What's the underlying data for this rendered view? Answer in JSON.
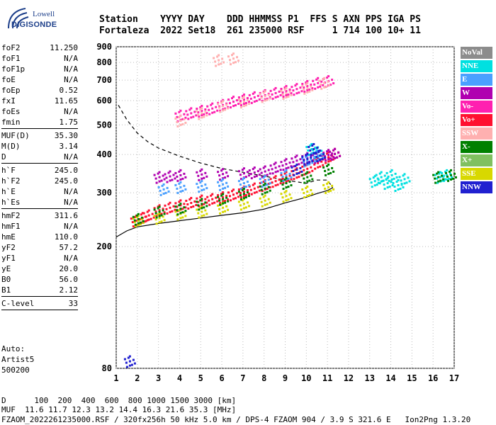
{
  "logo": {
    "brand": "Lowell",
    "sub": "DIGISONDE"
  },
  "header": {
    "line1": "Station    YYYY DAY    DDD HHMMSS P1  FFS S AXN PPS IGA PS",
    "line2": "Fortaleza  2022 Set18  261 235000 RSF     1 714 100 10+ 11"
  },
  "params_a": [
    {
      "name": "foF2",
      "value": "11.250"
    },
    {
      "name": "foF1",
      "value": "N/A"
    },
    {
      "name": "foF1p",
      "value": "N/A"
    },
    {
      "name": "foE",
      "value": "N/A"
    },
    {
      "name": "foEp",
      "value": "0.52"
    },
    {
      "name": "fxI",
      "value": "11.65"
    },
    {
      "name": "foEs",
      "value": "N/A"
    },
    {
      "name": "fmin",
      "value": "1.75"
    }
  ],
  "params_b": [
    {
      "name": "MUF(D)",
      "value": "35.30"
    },
    {
      "name": "M(D)",
      "value": "3.14"
    },
    {
      "name": "D",
      "value": "N/A"
    }
  ],
  "params_c": [
    {
      "name": "h`F",
      "value": "245.0"
    },
    {
      "name": "h`F2",
      "value": "245.0"
    },
    {
      "name": "h`E",
      "value": "N/A"
    },
    {
      "name": "h`Es",
      "value": "N/A"
    }
  ],
  "params_d": [
    {
      "name": "hmF2",
      "value": "311.6"
    },
    {
      "name": "hmF1",
      "value": "N/A"
    },
    {
      "name": "hmE",
      "value": "110.0"
    },
    {
      "name": "yF2",
      "value": "57.2"
    },
    {
      "name": "yF1",
      "value": "N/A"
    },
    {
      "name": "yE",
      "value": "20.0"
    },
    {
      "name": "B0",
      "value": "56.0"
    },
    {
      "name": "B1",
      "value": "2.12"
    }
  ],
  "params_e": [
    {
      "name": "C-level",
      "value": "33"
    }
  ],
  "auto": {
    "l1": "Auto:",
    "l2": "Artist5",
    "l3": "500200"
  },
  "legend": [
    {
      "label": "NoVal",
      "color": "#8c8c8c"
    },
    {
      "label": "NNE",
      "color": "#00e0e0"
    },
    {
      "label": "E",
      "color": "#4aa0ff"
    },
    {
      "label": "W",
      "color": "#b000b0"
    },
    {
      "label": "Vo-",
      "color": "#ff20b0"
    },
    {
      "label": "Vo+",
      "color": "#ff1030"
    },
    {
      "label": "SSW",
      "color": "#ffb0b0"
    },
    {
      "label": "X-",
      "color": "#008000"
    },
    {
      "label": "X+",
      "color": "#80c060"
    },
    {
      "label": "SSE",
      "color": "#d8d800"
    },
    {
      "label": "NNW",
      "color": "#2020d0"
    }
  ],
  "footer": {
    "d_line": "D      100  200  400  600  800 1000 1500 3000 [km]",
    "muf_line": "MUF  11.6 11.7 12.3 13.2 14.4 16.3 21.6 35.3 [MHz]",
    "file_line": "FZAOM_2022261235000.RSF / 320fx256h 50 kHz 5.0 km / DPS-4 FZAOM 904 / 3.9 S 321.6 E   Ion2Png 1.3.20"
  },
  "chart_data": {
    "type": "scatter",
    "x_ticks": [
      "1",
      "2",
      "3",
      "4",
      "5",
      "6",
      "7",
      "8",
      "9",
      "10",
      "11",
      "12",
      "13",
      "14",
      "15",
      "16",
      "17"
    ],
    "y_ticks": [
      "80",
      "200",
      "300",
      "400",
      "500",
      "600",
      "700",
      "800",
      "900"
    ],
    "xlim": [
      1,
      17
    ],
    "ylim": [
      80,
      900
    ],
    "y_scale": "log",
    "grid": true,
    "legend_position": "right",
    "series": [
      {
        "name": "Vo+",
        "color": "#ff1030",
        "points": [
          [
            1.9,
            245
          ],
          [
            2.2,
            250
          ],
          [
            2.5,
            255
          ],
          [
            3,
            265
          ],
          [
            3.5,
            270
          ],
          [
            4,
            275
          ],
          [
            4.5,
            280
          ],
          [
            5,
            285
          ],
          [
            5.5,
            288
          ],
          [
            6,
            292
          ],
          [
            6.5,
            298
          ],
          [
            7,
            305
          ],
          [
            7.5,
            312
          ],
          [
            8,
            320
          ],
          [
            8.5,
            330
          ],
          [
            9,
            340
          ],
          [
            9.5,
            350
          ],
          [
            10,
            362
          ],
          [
            10.5,
            378
          ],
          [
            11,
            395
          ],
          [
            11.3,
            405
          ]
        ]
      },
      {
        "name": "W",
        "color": "#b000b0",
        "points": [
          [
            3,
            340
          ],
          [
            3.5,
            342
          ],
          [
            4,
            345
          ],
          [
            5,
            347
          ],
          [
            6,
            348
          ],
          [
            7,
            350
          ],
          [
            7.5,
            352
          ],
          [
            8,
            355
          ],
          [
            8.5,
            365
          ],
          [
            9,
            375
          ],
          [
            9.5,
            385
          ],
          [
            10,
            392
          ],
          [
            10.5,
            395
          ],
          [
            11,
            402
          ],
          [
            11.3,
            405
          ]
        ]
      },
      {
        "name": "NNE",
        "color": "#00e0e0",
        "points": [
          [
            10.2,
            420
          ],
          [
            10.5,
            410
          ],
          [
            13.2,
            330
          ],
          [
            13.5,
            340
          ],
          [
            13.8,
            325
          ],
          [
            14,
            345
          ],
          [
            14.3,
            320
          ],
          [
            14.6,
            335
          ],
          [
            16.3,
            340
          ],
          [
            16.6,
            345
          ]
        ]
      },
      {
        "name": "E",
        "color": "#4aa0ff",
        "points": [
          [
            3.2,
            310
          ],
          [
            4,
            315
          ],
          [
            5,
            318
          ],
          [
            6,
            322
          ],
          [
            7,
            325
          ],
          [
            8,
            330
          ],
          [
            9,
            345
          ],
          [
            10,
            385
          ],
          [
            10.5,
            400
          ]
        ]
      },
      {
        "name": "SSE",
        "color": "#d8d800",
        "points": [
          [
            2,
            245
          ],
          [
            3,
            250
          ],
          [
            4,
            258
          ],
          [
            5,
            262
          ],
          [
            6,
            270
          ],
          [
            7,
            278
          ],
          [
            8,
            285
          ],
          [
            9,
            295
          ],
          [
            10,
            305
          ],
          [
            11,
            315
          ]
        ]
      },
      {
        "name": "Vo-",
        "color": "#ff20b0",
        "points": [
          [
            4,
            540
          ],
          [
            4.5,
            550
          ],
          [
            5,
            560
          ],
          [
            5.5,
            570
          ],
          [
            6,
            585
          ],
          [
            6.5,
            600
          ],
          [
            7,
            610
          ],
          [
            7.5,
            620
          ],
          [
            8,
            630
          ],
          [
            8.5,
            640
          ],
          [
            9,
            650
          ],
          [
            9.5,
            660
          ],
          [
            10,
            675
          ],
          [
            10.5,
            690
          ],
          [
            11,
            700
          ]
        ]
      },
      {
        "name": "SSW",
        "color": "#ffb0b0",
        "points": [
          [
            4,
            520
          ],
          [
            5,
            550
          ],
          [
            6,
            580
          ],
          [
            7,
            600
          ],
          [
            8,
            625
          ],
          [
            9,
            640
          ],
          [
            10,
            665
          ],
          [
            10.8,
            690
          ],
          [
            5.8,
            820
          ],
          [
            6.5,
            830
          ]
        ]
      },
      {
        "name": "X-",
        "color": "#008000",
        "points": [
          [
            2,
            248
          ],
          [
            3,
            262
          ],
          [
            4,
            268
          ],
          [
            5,
            278
          ],
          [
            6,
            288
          ],
          [
            7,
            300
          ],
          [
            8,
            312
          ],
          [
            9,
            325
          ],
          [
            10,
            340
          ],
          [
            11,
            360
          ],
          [
            16.2,
            340
          ],
          [
            16.8,
            345
          ]
        ]
      },
      {
        "name": "NNW",
        "color": "#2020d0",
        "points": [
          [
            9.5,
            360
          ],
          [
            10,
            390
          ],
          [
            10.3,
            420
          ],
          [
            10.6,
            400
          ],
          [
            1.6,
            85
          ]
        ]
      }
    ],
    "curves": [
      {
        "kind": "solid",
        "points": [
          [
            1,
            215
          ],
          [
            1.5,
            225
          ],
          [
            2,
            232
          ],
          [
            3,
            238
          ],
          [
            4,
            243
          ],
          [
            5,
            248
          ],
          [
            6,
            253
          ],
          [
            7,
            258
          ],
          [
            8,
            265
          ],
          [
            9,
            278
          ],
          [
            10,
            290
          ],
          [
            10.5,
            298
          ],
          [
            11,
            305
          ],
          [
            11.25,
            311.6
          ]
        ]
      },
      {
        "kind": "dashed",
        "points": [
          [
            1.1,
            580
          ],
          [
            1.5,
            520
          ],
          [
            2,
            470
          ],
          [
            2.5,
            440
          ],
          [
            3,
            420
          ],
          [
            4,
            395
          ],
          [
            5,
            375
          ],
          [
            6,
            360
          ],
          [
            7,
            350
          ],
          [
            8,
            340
          ],
          [
            9,
            330
          ],
          [
            10,
            322
          ],
          [
            10.5,
            330
          ],
          [
            11,
            330
          ],
          [
            11.25,
            311.6
          ]
        ]
      }
    ]
  }
}
